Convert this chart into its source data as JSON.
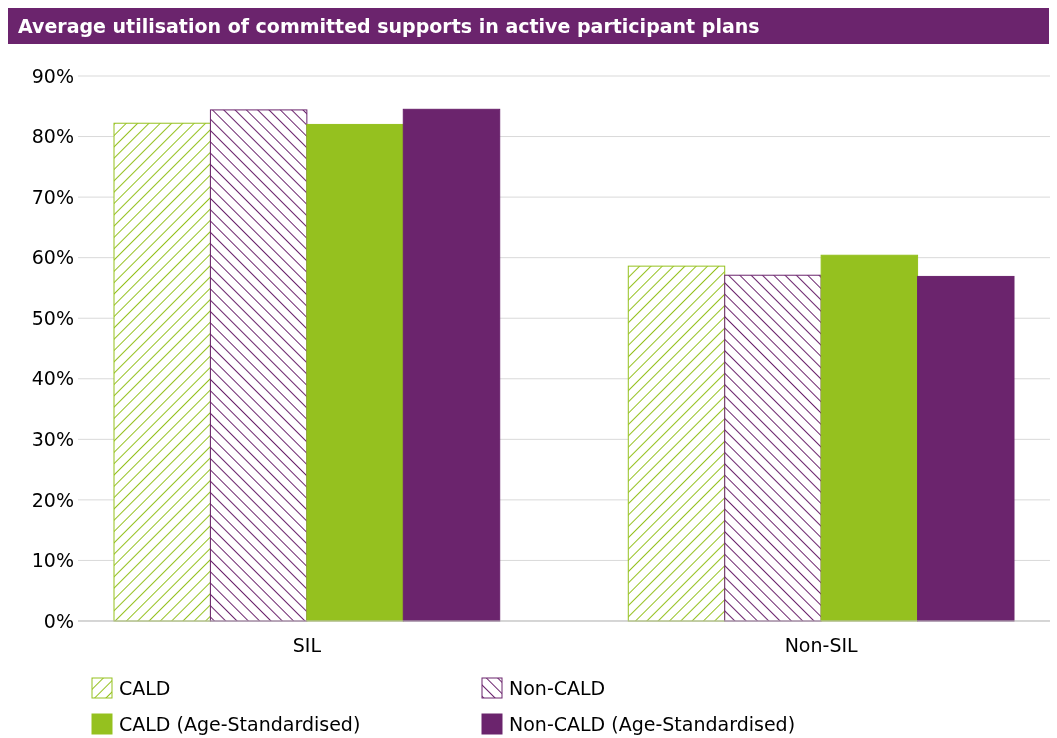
{
  "chart_data": {
    "type": "bar",
    "title": "Average utilisation of committed supports in active participant plans",
    "categories": [
      "SIL",
      "Non-SIL"
    ],
    "series": [
      {
        "name": "CALD",
        "color": "#95c11f",
        "values": [
          82.2,
          58.6
        ]
      },
      {
        "name": "Non-CALD",
        "color": "#6b246d",
        "values": [
          84.4,
          57.1
        ]
      },
      {
        "name": "CALD (Age-Standardised)",
        "color": "#95c11f",
        "values": [
          82.0,
          60.4
        ]
      },
      {
        "name": "Non-CALD (Age-Standardised)",
        "color": "#6b246d",
        "values": [
          84.5,
          56.9
        ]
      }
    ],
    "ylim": [
      0,
      90
    ],
    "yticks": [
      {
        "value": 0,
        "label": "0%"
      },
      {
        "value": 10,
        "label": "10%"
      },
      {
        "value": 20,
        "label": "20%"
      },
      {
        "value": 30,
        "label": "30%"
      },
      {
        "value": 40,
        "label": "40%"
      },
      {
        "value": 50,
        "label": "50%"
      },
      {
        "value": 60,
        "label": "60%"
      },
      {
        "value": 70,
        "label": "70%"
      },
      {
        "value": 80,
        "label": "80%"
      },
      {
        "value": 90,
        "label": "90%"
      }
    ],
    "grid": "y",
    "legend": "bottom"
  }
}
